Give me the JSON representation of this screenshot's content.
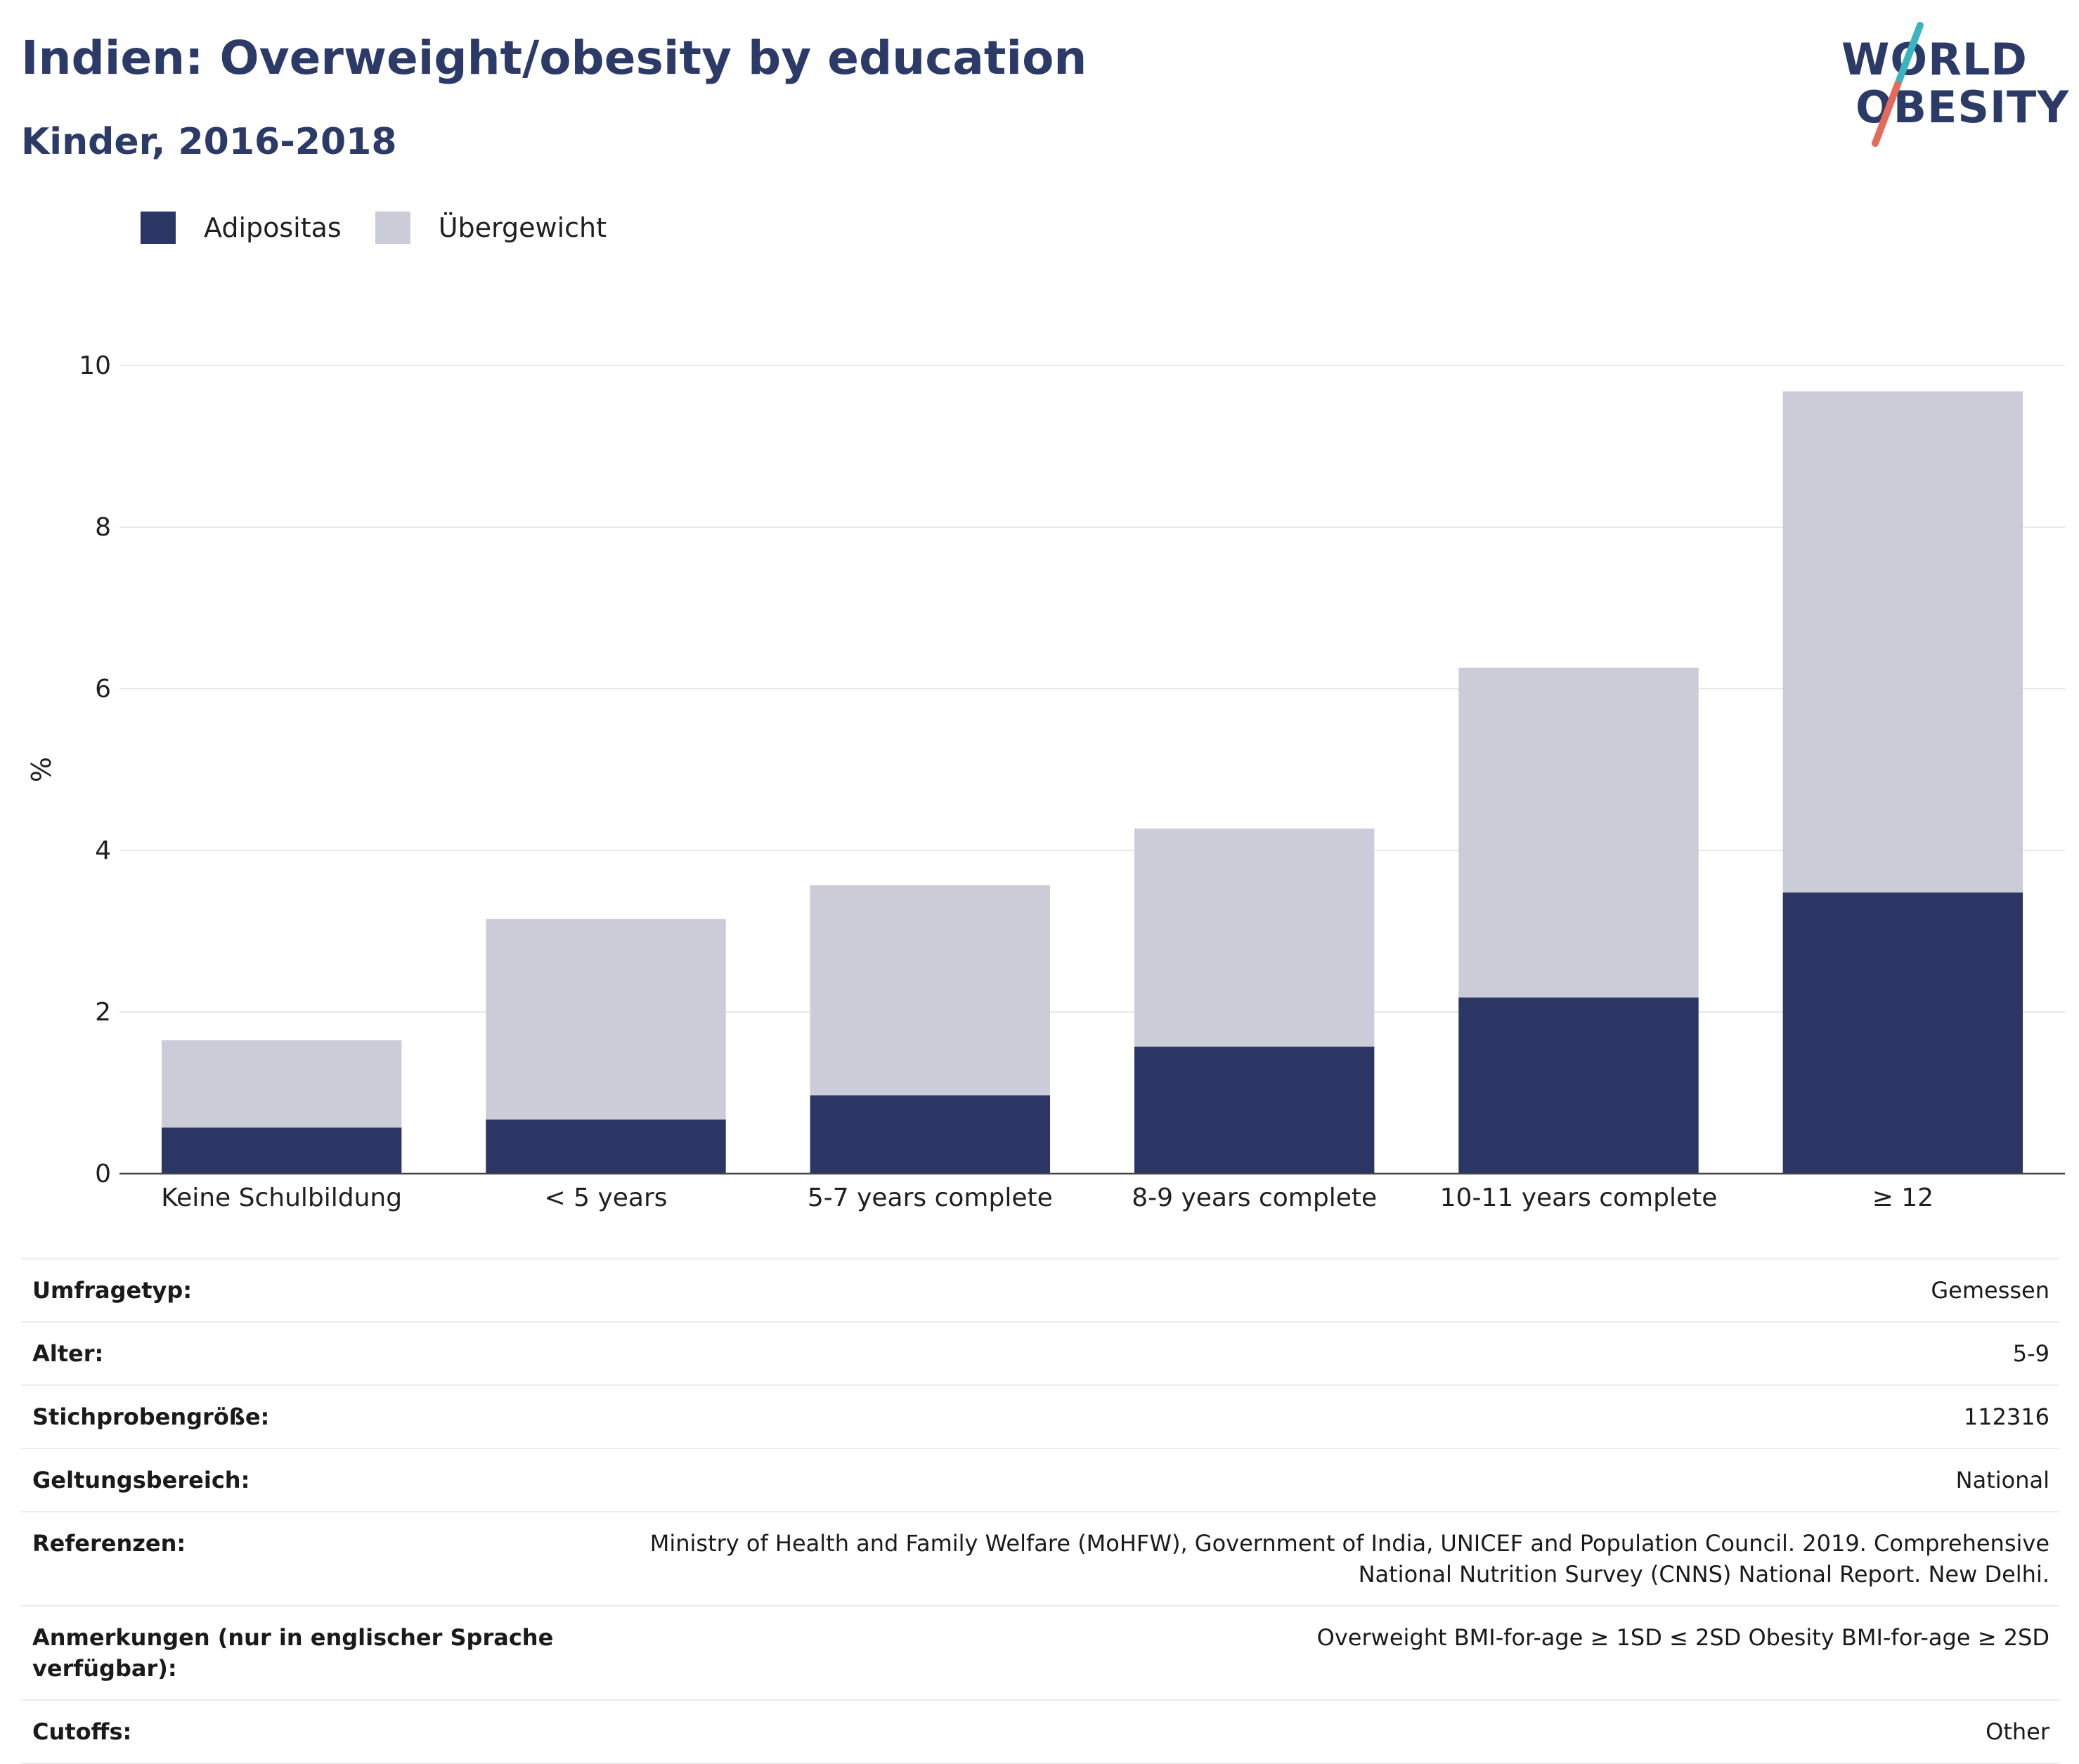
{
  "title": "Indien: Overweight/obesity by education",
  "subtitle": "Kinder, 2016-2018",
  "logo": {
    "line1": "WORLD",
    "line2": "OBESITY"
  },
  "colors": {
    "adipositas": "#2b3664",
    "uebergewicht": "#cbccd7",
    "text_dark": "#2b3a67",
    "logo_teal": "#3bb4c0",
    "logo_coral": "#e46b5b",
    "grid": "#e8e8e8"
  },
  "legend": [
    {
      "label": "Adipositas",
      "color": "#2b3664"
    },
    {
      "label": "Übergewicht",
      "color": "#cbccd7"
    }
  ],
  "chart_data": {
    "type": "bar",
    "stacked": true,
    "categories": [
      "Keine Schulbildung",
      "< 5 years",
      "5-7 years complete",
      "8-9 years complete",
      "10-11 years complete",
      "≥ 12"
    ],
    "series": [
      {
        "name": "Adipositas",
        "values": [
          0.57,
          0.67,
          0.97,
          1.57,
          2.18,
          3.48
        ]
      },
      {
        "name": "Übergewicht",
        "values": [
          1.08,
          2.48,
          2.6,
          2.7,
          4.08,
          6.2
        ]
      }
    ],
    "xlabel": "",
    "ylabel": "%",
    "ylim": [
      0,
      10
    ],
    "yticks": [
      0,
      2,
      4,
      6,
      8,
      10
    ],
    "grid": true
  },
  "info": [
    {
      "key": "Umfragetyp:",
      "value": "Gemessen"
    },
    {
      "key": "Alter:",
      "value": "5-9"
    },
    {
      "key": "Stichprobengröße:",
      "value": "112316"
    },
    {
      "key": "Geltungsbereich:",
      "value": "National"
    },
    {
      "key": "Referenzen:",
      "value": "Ministry of Health and Family Welfare (MoHFW), Government of India, UNICEF and Population Council. 2019. Comprehensive National Nutrition Survey (CNNS) National Report. New Delhi."
    },
    {
      "key": "Anmerkungen (nur in englischer Sprache verfügbar):",
      "value": "Overweight BMI-for-age ≥ 1SD ≤ 2SD Obesity BMI-for-age ≥ 2SD"
    },
    {
      "key": "Cutoffs:",
      "value": "Other"
    }
  ]
}
